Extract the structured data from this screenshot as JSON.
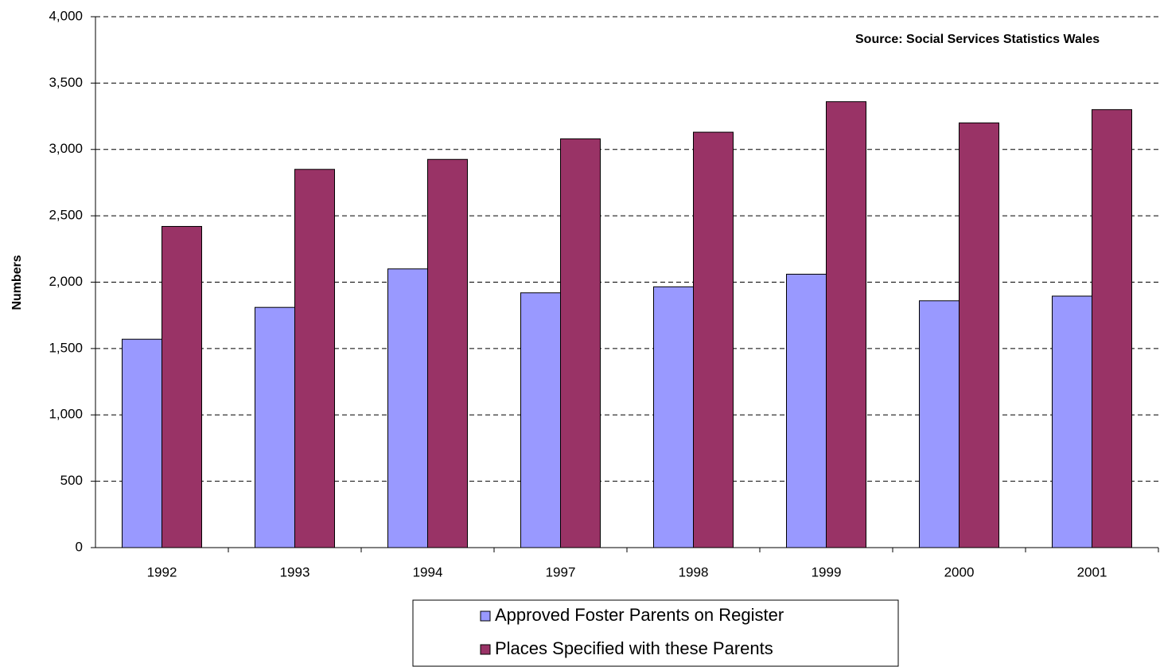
{
  "chart_data": {
    "type": "bar",
    "y_label": "Numbers",
    "annotation": "Source: Social Services Statistics Wales",
    "categories": [
      "1992",
      "1993",
      "1994",
      "1997",
      "1998",
      "1999",
      "2000",
      "2001"
    ],
    "series": [
      {
        "name": "Approved Foster Parents on Register",
        "color": "#9999ff",
        "values": [
          1570,
          1810,
          2100,
          1920,
          1965,
          2060,
          1860,
          1895
        ]
      },
      {
        "name": "Places Specified with these Parents",
        "color": "#993366",
        "values": [
          2420,
          2850,
          2925,
          3080,
          3130,
          3360,
          3200,
          3300
        ]
      }
    ],
    "ylim": [
      0,
      4000
    ],
    "yticks": [
      0,
      500,
      {
        "value": 1000,
        "label": "1,000"
      },
      {
        "value": 1500,
        "label": "1,500"
      },
      {
        "value": 2000,
        "label": "2,000"
      },
      {
        "value": 2500,
        "label": "2,500"
      },
      {
        "value": 3000,
        "label": "3,000"
      },
      {
        "value": 3500,
        "label": "3,500"
      },
      {
        "value": 4000,
        "label": "4,000"
      }
    ],
    "grid": true,
    "legend": "bottom"
  }
}
